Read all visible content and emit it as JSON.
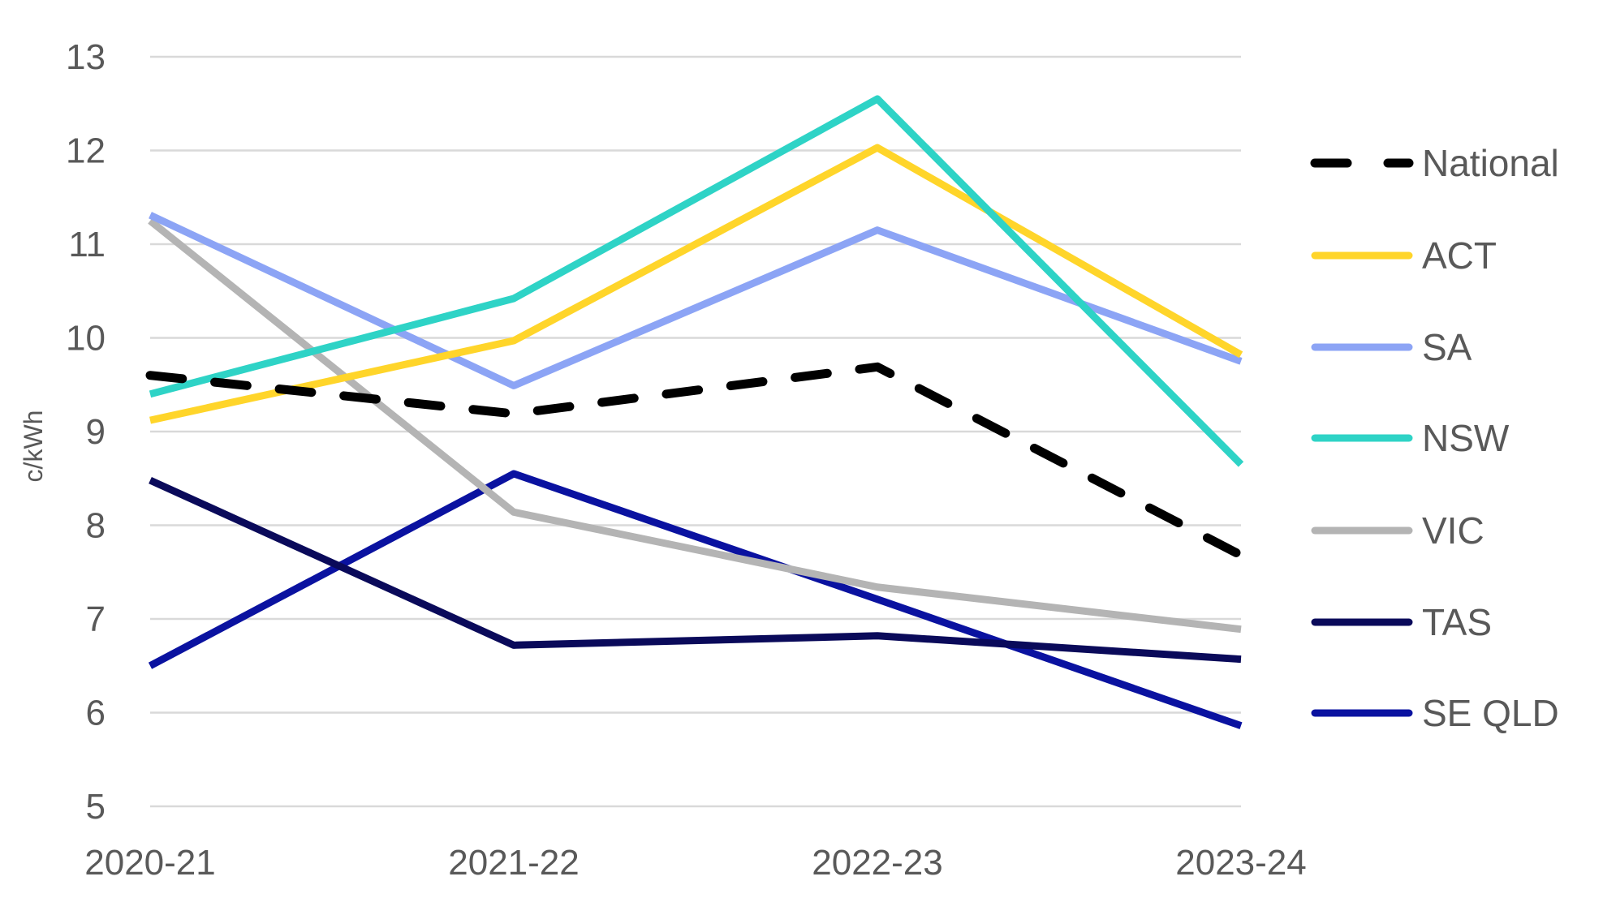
{
  "chart_data": {
    "type": "line",
    "title": "",
    "xlabel": "",
    "ylabel": "c/kWh",
    "ylim": [
      5,
      13
    ],
    "yticks": [
      5,
      6,
      7,
      8,
      9,
      10,
      11,
      12,
      13
    ],
    "grid": true,
    "legend_position": "right",
    "categories": [
      "2020-21",
      "2021-22",
      "2022-23",
      "2023-24"
    ],
    "series": [
      {
        "name": "National",
        "color": "#000000",
        "dashed": true,
        "values": [
          9.6,
          9.19,
          9.69,
          7.68
        ]
      },
      {
        "name": "ACT",
        "color": "#FFD52A",
        "dashed": false,
        "values": [
          9.12,
          9.97,
          12.03,
          9.82
        ]
      },
      {
        "name": "SA",
        "color": "#8CA4F5",
        "dashed": false,
        "values": [
          11.31,
          9.49,
          11.15,
          9.75
        ]
      },
      {
        "name": "NSW",
        "color": "#2ED3C6",
        "dashed": false,
        "values": [
          9.4,
          10.42,
          12.55,
          8.65
        ]
      },
      {
        "name": "VIC",
        "color": "#B4B4B4",
        "dashed": false,
        "values": [
          11.25,
          8.14,
          7.34,
          6.89
        ]
      },
      {
        "name": "TAS",
        "color": "#0A0A5A",
        "dashed": false,
        "values": [
          8.48,
          6.72,
          6.82,
          6.57
        ]
      },
      {
        "name": "SE QLD",
        "color": "#0A12A0",
        "dashed": false,
        "values": [
          6.5,
          8.55,
          7.21,
          5.86
        ]
      }
    ]
  }
}
